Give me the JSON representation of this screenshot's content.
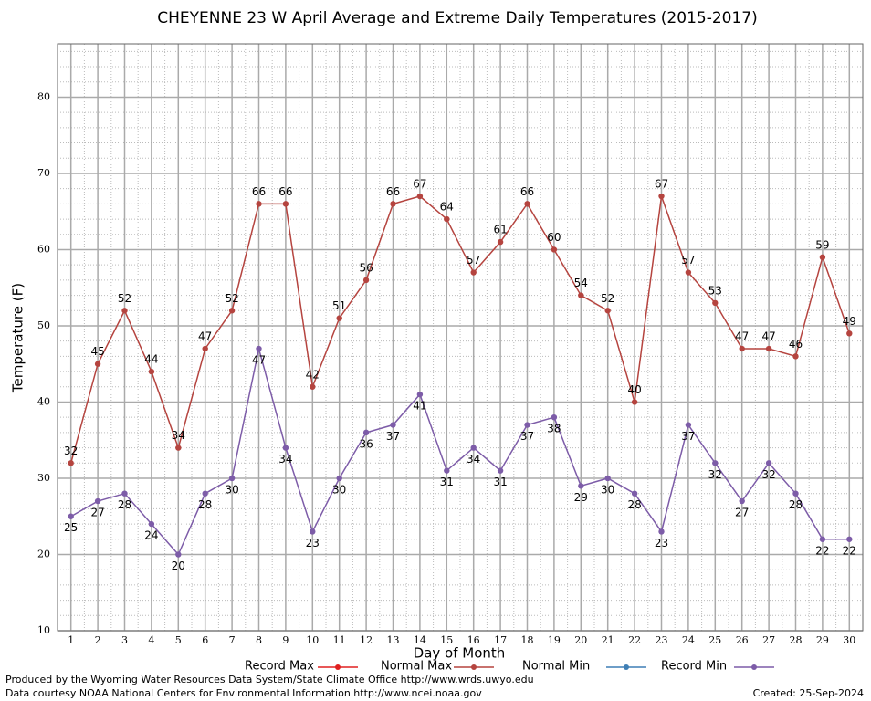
{
  "chart_data": {
    "type": "line",
    "title": "CHEYENNE 23 W April Average and Extreme Daily Temperatures (2015-2017)",
    "xlabel": "Day of Month",
    "ylabel": "Temperature (F)",
    "x": [
      1,
      2,
      3,
      4,
      5,
      6,
      7,
      8,
      9,
      10,
      11,
      12,
      13,
      14,
      15,
      16,
      17,
      18,
      19,
      20,
      21,
      22,
      23,
      24,
      25,
      26,
      27,
      28,
      29,
      30
    ],
    "series": [
      {
        "name": "Record Max",
        "color": "#e02020",
        "values": [
          null,
          null,
          null,
          null,
          null,
          null,
          null,
          null,
          null,
          null,
          null,
          null,
          null,
          null,
          null,
          null,
          null,
          null,
          null,
          null,
          null,
          null,
          null,
          null,
          null,
          null,
          null,
          null,
          null,
          null
        ]
      },
      {
        "name": "Normal Max",
        "color": "#b5443f",
        "values": [
          32,
          45,
          52,
          44,
          34,
          47,
          52,
          66,
          66,
          42,
          51,
          56,
          66,
          67,
          64,
          57,
          61,
          66,
          60,
          54,
          52,
          40,
          67,
          57,
          53,
          47,
          47,
          46,
          59,
          49
        ]
      },
      {
        "name": "Normal Min",
        "color": "#3f7fb5",
        "values": [
          null,
          null,
          null,
          null,
          null,
          null,
          null,
          null,
          null,
          null,
          null,
          null,
          null,
          null,
          null,
          null,
          null,
          null,
          null,
          null,
          null,
          null,
          null,
          null,
          null,
          null,
          null,
          null,
          null,
          null
        ]
      },
      {
        "name": "Record Min",
        "color": "#7d5ca8",
        "values": [
          25,
          27,
          28,
          24,
          20,
          28,
          30,
          47,
          34,
          23,
          30,
          36,
          37,
          41,
          31,
          34,
          31,
          37,
          38,
          29,
          30,
          28,
          23,
          37,
          32,
          27,
          32,
          28,
          22,
          22
        ]
      }
    ],
    "xlim": [
      0.5,
      30.5
    ],
    "xticks": [
      1,
      2,
      3,
      4,
      5,
      6,
      7,
      8,
      9,
      10,
      11,
      12,
      13,
      14,
      15,
      16,
      17,
      18,
      19,
      20,
      21,
      22,
      23,
      24,
      25,
      26,
      27,
      28,
      29,
      30
    ],
    "ylim": [
      10,
      87
    ],
    "yticks": [
      10,
      20,
      30,
      40,
      50,
      60,
      70,
      80
    ],
    "grid": true,
    "footer_left": [
      "Produced by the Wyoming Water Resources Data System/State Climate Office http://www.wrds.uwyo.edu",
      "Data courtesy NOAA National Centers for Environmental Information http://www.ncei.noaa.gov"
    ],
    "footer_right": "Created:  25-Sep-2024"
  }
}
